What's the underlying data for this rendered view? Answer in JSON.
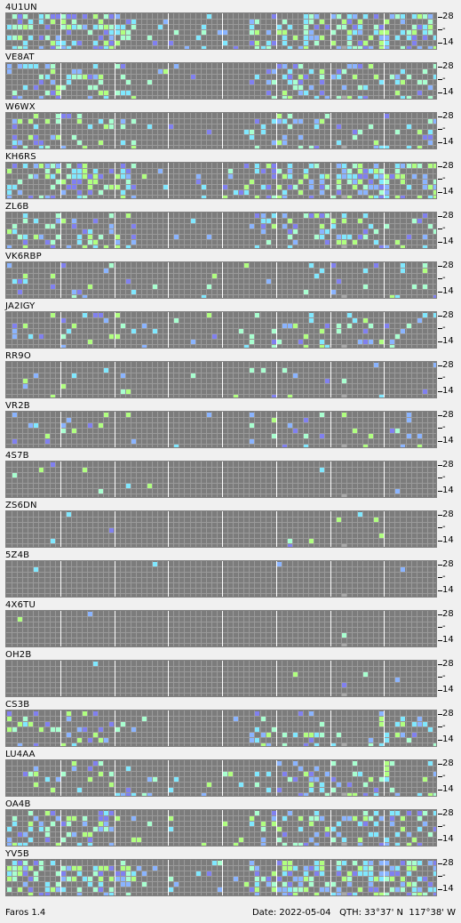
{
  "app": {
    "name_version": "Faros 1.4"
  },
  "status": {
    "date_label": "Date:",
    "date": "2022-05-04",
    "qth_label": "QTH:",
    "qth": "33°37' N  117°38' W"
  },
  "band_labels": {
    "top": "28",
    "mid": "-",
    "bottom": "14"
  },
  "colors": {
    "grid_bg": "#7c7c7c",
    "grid_line": "#9a9a9a",
    "major_line": "#ffffff",
    "signal_strong": "#a8ffd0",
    "signal_medium": "#80e8ff",
    "signal_weak": "#8ab4ff",
    "signal_very_weak": "#8080f0",
    "signal_green": "#b0ff80",
    "marker_gray": "#a8a8a8"
  },
  "beacons": [
    {
      "callsign": "4U1UN",
      "activity": 0.85
    },
    {
      "callsign": "VE8AT",
      "activity": 0.55
    },
    {
      "callsign": "W6WX",
      "activity": 0.35
    },
    {
      "callsign": "KH6RS",
      "activity": 0.8
    },
    {
      "callsign": "ZL6B",
      "activity": 0.5
    },
    {
      "callsign": "VK6RBP",
      "activity": 0.15
    },
    {
      "callsign": "JA2IGY",
      "activity": 0.25
    },
    {
      "callsign": "RR9O",
      "activity": 0.08
    },
    {
      "callsign": "VR2B",
      "activity": 0.2
    },
    {
      "callsign": "4S7B",
      "activity": 0.02
    },
    {
      "callsign": "ZS6DN",
      "activity": 0.04
    },
    {
      "callsign": "5Z4B",
      "activity": 0.04
    },
    {
      "callsign": "4X6TU",
      "activity": 0.02
    },
    {
      "callsign": "OH2B",
      "activity": 0.02
    },
    {
      "callsign": "CS3B",
      "activity": 0.35
    },
    {
      "callsign": "LU4AA",
      "activity": 0.4
    },
    {
      "callsign": "OA4B",
      "activity": 0.55
    },
    {
      "callsign": "YV5B",
      "activity": 0.9
    }
  ]
}
